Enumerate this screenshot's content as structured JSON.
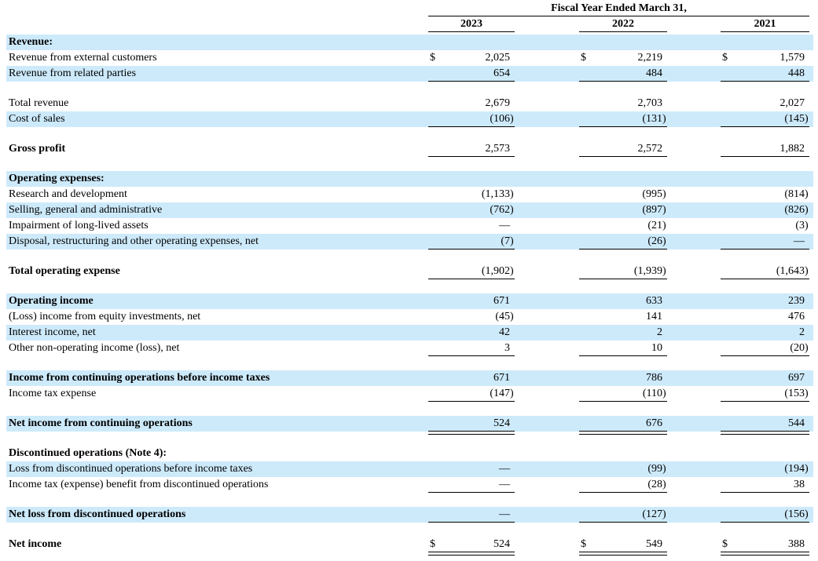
{
  "table": {
    "currency_symbol": "$",
    "colors": {
      "row_highlight": "#cdeafb",
      "rule": "#000000",
      "text": "#000000"
    },
    "header": {
      "title": "Fiscal Year Ended March 31,",
      "years": [
        "2023",
        "2022",
        "2021"
      ]
    },
    "rows": [
      {
        "type": "data",
        "label": "Revenue:",
        "bold": true,
        "highlight": true,
        "dollar": false,
        "underline": "none",
        "values": [
          "",
          "",
          ""
        ]
      },
      {
        "type": "data",
        "label": "Revenue from external customers",
        "bold": false,
        "highlight": false,
        "dollar": true,
        "underline": "none",
        "values": [
          "2,025",
          "2,219",
          "1,579"
        ]
      },
      {
        "type": "data",
        "label": "Revenue from related parties",
        "bold": false,
        "highlight": true,
        "dollar": false,
        "underline": "single",
        "values": [
          "654",
          "484",
          "448"
        ]
      },
      {
        "type": "spacer"
      },
      {
        "type": "data",
        "label": "Total revenue",
        "bold": false,
        "highlight": false,
        "dollar": false,
        "underline": "none",
        "values": [
          "2,679",
          "2,703",
          "2,027"
        ]
      },
      {
        "type": "data",
        "label": "Cost of sales",
        "bold": false,
        "highlight": true,
        "dollar": false,
        "underline": "single",
        "values": [
          "(106)",
          "(131)",
          "(145)"
        ]
      },
      {
        "type": "spacer"
      },
      {
        "type": "data",
        "label": "Gross profit",
        "bold": true,
        "highlight": false,
        "dollar": false,
        "underline": "single",
        "values": [
          "2,573",
          "2,572",
          "1,882"
        ]
      },
      {
        "type": "spacer"
      },
      {
        "type": "data",
        "label": "Operating expenses:",
        "bold": true,
        "highlight": true,
        "dollar": false,
        "underline": "none",
        "values": [
          "",
          "",
          ""
        ]
      },
      {
        "type": "data",
        "label": "Research and development",
        "bold": false,
        "highlight": false,
        "dollar": false,
        "underline": "none",
        "values": [
          "(1,133)",
          "(995)",
          "(814)"
        ]
      },
      {
        "type": "data",
        "label": "Selling, general and administrative",
        "bold": false,
        "highlight": true,
        "dollar": false,
        "underline": "none",
        "values": [
          "(762)",
          "(897)",
          "(826)"
        ]
      },
      {
        "type": "data",
        "label": "Impairment of long-lived assets",
        "bold": false,
        "highlight": false,
        "dollar": false,
        "underline": "none",
        "values": [
          "—",
          "(21)",
          "(3)"
        ]
      },
      {
        "type": "data",
        "label": "Disposal, restructuring and other operating expenses, net",
        "bold": false,
        "highlight": true,
        "dollar": false,
        "underline": "single",
        "values": [
          "(7)",
          "(26)",
          "—"
        ]
      },
      {
        "type": "spacer"
      },
      {
        "type": "data",
        "label": "Total operating expense",
        "bold": true,
        "highlight": false,
        "dollar": false,
        "underline": "single",
        "values": [
          "(1,902)",
          "(1,939)",
          "(1,643)"
        ]
      },
      {
        "type": "spacer"
      },
      {
        "type": "data",
        "label": "Operating income",
        "bold": true,
        "highlight": true,
        "dollar": false,
        "underline": "none",
        "values": [
          "671",
          "633",
          "239"
        ]
      },
      {
        "type": "data",
        "label": "(Loss) income from equity investments, net",
        "bold": false,
        "highlight": false,
        "dollar": false,
        "underline": "none",
        "values": [
          "(45)",
          "141",
          "476"
        ]
      },
      {
        "type": "data",
        "label": "Interest income, net",
        "bold": false,
        "highlight": true,
        "dollar": false,
        "underline": "none",
        "values": [
          "42",
          "2",
          "2"
        ]
      },
      {
        "type": "data",
        "label": "Other non-operating income (loss), net",
        "bold": false,
        "highlight": false,
        "dollar": false,
        "underline": "single",
        "values": [
          "3",
          "10",
          "(20)"
        ]
      },
      {
        "type": "spacer"
      },
      {
        "type": "data",
        "label": "Income from continuing operations before income taxes",
        "bold": true,
        "highlight": true,
        "dollar": false,
        "underline": "none",
        "values": [
          "671",
          "786",
          "697"
        ]
      },
      {
        "type": "data",
        "label": "Income tax expense",
        "bold": false,
        "highlight": false,
        "dollar": false,
        "underline": "single",
        "values": [
          "(147)",
          "(110)",
          "(153)"
        ]
      },
      {
        "type": "spacer"
      },
      {
        "type": "data",
        "label": "Net income from continuing operations",
        "bold": true,
        "highlight": true,
        "dollar": false,
        "underline": "double",
        "values": [
          "524",
          "676",
          "544"
        ]
      },
      {
        "type": "spacer"
      },
      {
        "type": "data",
        "label": "Discontinued operations (Note 4):",
        "bold": true,
        "highlight": false,
        "dollar": false,
        "underline": "none",
        "values": [
          "",
          "",
          ""
        ]
      },
      {
        "type": "data",
        "label": "Loss from discontinued operations before income taxes",
        "bold": false,
        "highlight": true,
        "dollar": false,
        "underline": "none",
        "values": [
          "—",
          "(99)",
          "(194)"
        ]
      },
      {
        "type": "data",
        "label": "Income tax (expense) benefit from discontinued operations",
        "bold": false,
        "highlight": false,
        "dollar": false,
        "underline": "single",
        "values": [
          "—",
          "(28)",
          "38"
        ]
      },
      {
        "type": "spacer"
      },
      {
        "type": "data",
        "label": "Net loss from discontinued operations",
        "bold": true,
        "highlight": true,
        "dollar": false,
        "underline": "single",
        "values": [
          "—",
          "(127)",
          "(156)"
        ]
      },
      {
        "type": "spacer"
      },
      {
        "type": "data",
        "label": "Net income",
        "bold": true,
        "highlight": false,
        "dollar": true,
        "underline": "double",
        "values": [
          "524",
          "549",
          "388"
        ]
      }
    ]
  }
}
